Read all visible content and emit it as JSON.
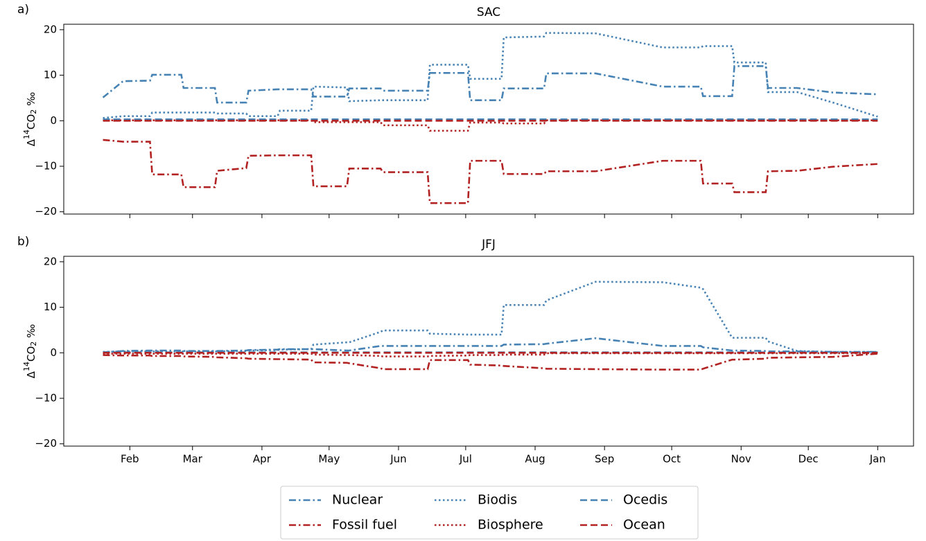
{
  "chart_data": [
    {
      "type": "line",
      "label": "a)",
      "title": "SAC",
      "ylabel": [
        "Δ",
        "14",
        "CO",
        "2",
        " ‰"
      ],
      "x": [
        19,
        28,
        40,
        41,
        54,
        55,
        69,
        70,
        83,
        84,
        97,
        98,
        112,
        113,
        128,
        129,
        143,
        144,
        164,
        165,
        182,
        183,
        197,
        198,
        216,
        217,
        239,
        269,
        286,
        287,
        300,
        301,
        315,
        316,
        329,
        345,
        365
      ],
      "xlim": [
        1.5,
        381
      ],
      "xticks": [
        31,
        59,
        90,
        120,
        151,
        181,
        212,
        243,
        273,
        304,
        334,
        365
      ],
      "show_xticklabels": false,
      "ylim": [
        -20.5,
        21.2
      ],
      "yticks": [
        {
          "value": -20,
          "label": "−20"
        },
        {
          "value": -10,
          "label": "−10"
        },
        0,
        10,
        20
      ],
      "series": [
        {
          "name": "Nuclear",
          "color": "#4682b4",
          "linestyle": "dashdot",
          "values": [
            5.1,
            8.7,
            8.8,
            10.1,
            10.1,
            7.2,
            7.2,
            4.0,
            4.0,
            6.6,
            6.9,
            6.9,
            6.9,
            5.3,
            5.3,
            7.1,
            7.1,
            6.6,
            6.6,
            10.5,
            10.5,
            4.5,
            4.5,
            7.1,
            7.1,
            10.4,
            10.4,
            7.5,
            7.5,
            5.4,
            5.4,
            12.0,
            12.0,
            7.2,
            7.2,
            6.2,
            5.8
          ]
        },
        {
          "name": "Fossil fuel",
          "color": "#b22222",
          "linestyle": "dashdot",
          "values": [
            -4.2,
            -4.6,
            -4.6,
            -11.8,
            -11.8,
            -14.6,
            -14.6,
            -11.0,
            -10.4,
            -7.7,
            -7.6,
            -7.6,
            -7.6,
            -14.4,
            -14.4,
            -10.5,
            -10.5,
            -11.3,
            -11.3,
            -18.1,
            -18.1,
            -8.8,
            -8.8,
            -11.7,
            -11.7,
            -11.1,
            -11.1,
            -8.8,
            -8.8,
            -13.8,
            -13.8,
            -15.7,
            -15.7,
            -11.1,
            -11.0,
            -10.1,
            -9.5
          ]
        },
        {
          "name": "Biodis",
          "color": "#4682b4",
          "linestyle": "dotted",
          "values": [
            0.6,
            1.0,
            1.0,
            1.8,
            1.8,
            1.8,
            1.8,
            1.6,
            1.6,
            1.0,
            1.0,
            2.2,
            2.2,
            7.5,
            7.3,
            4.3,
            4.5,
            4.5,
            4.5,
            12.3,
            12.3,
            9.2,
            9.2,
            18.3,
            18.5,
            19.3,
            19.2,
            16.1,
            16.1,
            16.4,
            16.4,
            12.8,
            12.8,
            6.3,
            6.3,
            4.0,
            0.9
          ]
        },
        {
          "name": "Biosphere",
          "color": "#b22222",
          "linestyle": "dotted",
          "values": [
            0.1,
            0.1,
            0.1,
            0.1,
            0.1,
            0.1,
            0.1,
            0.1,
            0.1,
            0.1,
            0.1,
            0.1,
            0.1,
            -0.3,
            -0.3,
            -0.3,
            -0.3,
            -1.0,
            -1.0,
            -2.2,
            -2.2,
            -0.4,
            -0.4,
            -0.6,
            -0.6,
            0.1,
            0.1,
            0.1,
            0.1,
            0.1,
            0.1,
            0.1,
            0.1,
            0.1,
            0.1,
            0.1,
            0.1
          ]
        },
        {
          "name": "Ocedis",
          "color": "#4682b4",
          "linestyle": "dashed",
          "values": [
            0.3,
            0.3,
            0.3,
            0.3,
            0.3,
            0.3,
            0.3,
            0.3,
            0.3,
            0.3,
            0.3,
            0.3,
            0.3,
            0.3,
            0.3,
            0.3,
            0.3,
            0.3,
            0.3,
            0.3,
            0.3,
            0.3,
            0.3,
            0.3,
            0.3,
            0.3,
            0.3,
            0.3,
            0.3,
            0.3,
            0.3,
            0.3,
            0.3,
            0.3,
            0.3,
            0.3,
            0.3
          ]
        },
        {
          "name": "Ocean",
          "color": "#b22222",
          "linestyle": "dashed",
          "values": [
            0,
            0,
            0,
            0,
            0,
            0,
            0,
            0,
            0,
            0,
            0,
            0,
            0,
            0,
            0,
            0,
            0,
            0,
            0,
            0,
            0,
            0,
            0,
            0,
            0,
            0,
            0,
            0,
            0,
            0,
            0,
            0,
            0,
            0,
            0,
            0,
            0
          ]
        }
      ]
    },
    {
      "type": "line",
      "label": "b)",
      "title": "JFJ",
      "ylabel": [
        "Δ",
        "14",
        "CO",
        "2",
        " ‰"
      ],
      "x": [
        19,
        28,
        40,
        41,
        54,
        55,
        69,
        70,
        83,
        84,
        97,
        98,
        112,
        113,
        128,
        129,
        143,
        144,
        164,
        165,
        182,
        183,
        197,
        198,
        216,
        217,
        239,
        269,
        286,
        287,
        300,
        301,
        315,
        316,
        329,
        345,
        365
      ],
      "xlim": [
        1.5,
        381
      ],
      "xticks": [
        {
          "value": 31,
          "label": "Feb"
        },
        {
          "value": 59,
          "label": "Mar"
        },
        {
          "value": 90,
          "label": "Apr"
        },
        {
          "value": 120,
          "label": "May"
        },
        {
          "value": 151,
          "label": "Jun"
        },
        {
          "value": 181,
          "label": "Jul"
        },
        {
          "value": 212,
          "label": "Aug"
        },
        {
          "value": 243,
          "label": "Sep"
        },
        {
          "value": 273,
          "label": "Oct"
        },
        {
          "value": 304,
          "label": "Nov"
        },
        {
          "value": 334,
          "label": "Dec"
        },
        {
          "value": 365,
          "label": "Jan"
        }
      ],
      "ylim": [
        -20.5,
        21.2
      ],
      "yticks": [
        {
          "value": -20,
          "label": "−20"
        },
        {
          "value": -10,
          "label": "−10"
        },
        0,
        10,
        20
      ],
      "legend": "lower center",
      "legend_columns": 3,
      "series": [
        {
          "name": "Nuclear",
          "color": "#4682b4",
          "linestyle": "dashdot",
          "values": [
            0.1,
            0.4,
            0.5,
            0.5,
            0.5,
            0.4,
            0.4,
            0.4,
            0.5,
            0.6,
            0.7,
            0.8,
            0.8,
            0.8,
            0.5,
            0.5,
            1.5,
            1.5,
            1.5,
            1.5,
            1.5,
            1.5,
            1.5,
            1.8,
            1.9,
            2.0,
            3.2,
            1.5,
            1.5,
            1.2,
            0.5,
            0.5,
            0.4,
            0.3,
            0.3,
            0.2,
            0.2
          ]
        },
        {
          "name": "Fossil fuel",
          "color": "#b22222",
          "linestyle": "dashdot",
          "values": [
            -0.5,
            -0.6,
            -0.6,
            -0.7,
            -0.7,
            -0.8,
            -0.9,
            -1.0,
            -1.2,
            -1.3,
            -1.4,
            -1.4,
            -1.5,
            -2.1,
            -2.2,
            -2.3,
            -3.4,
            -3.6,
            -3.6,
            -1.6,
            -1.6,
            -2.6,
            -2.8,
            -2.9,
            -3.4,
            -3.5,
            -3.6,
            -3.7,
            -3.7,
            -3.5,
            -1.5,
            -1.5,
            -1.3,
            -1.1,
            -1.0,
            -0.9,
            -0.2
          ]
        },
        {
          "name": "Biodis",
          "color": "#4682b4",
          "linestyle": "dotted",
          "values": [
            0.2,
            0.3,
            0.3,
            0.3,
            0.3,
            0.3,
            0.3,
            0.3,
            0.4,
            0.5,
            0.6,
            0.7,
            0.8,
            1.8,
            2.3,
            2.3,
            4.6,
            4.9,
            4.9,
            4.2,
            4.0,
            4.0,
            4.0,
            10.5,
            10.5,
            11.5,
            15.6,
            15.5,
            14.3,
            14.0,
            3.3,
            3.3,
            3.3,
            2.5,
            0.4,
            0.2,
            0.2
          ]
        },
        {
          "name": "Biosphere",
          "color": "#b22222",
          "linestyle": "dotted",
          "values": [
            -0.2,
            -0.2,
            -0.2,
            -0.2,
            -0.2,
            -0.2,
            -0.2,
            -0.2,
            -0.2,
            -0.2,
            -0.2,
            -0.2,
            -0.2,
            -0.4,
            -0.5,
            -0.5,
            -0.7,
            -0.8,
            -0.8,
            -0.7,
            -0.6,
            -0.5,
            -0.5,
            -0.4,
            -0.4,
            -0.1,
            -0.1,
            -0.1,
            -0.1,
            -0.1,
            -0.1,
            -0.1,
            -0.1,
            -0.1,
            -0.1,
            -0.1,
            -0.1
          ]
        },
        {
          "name": "Ocedis",
          "color": "#4682b4",
          "linestyle": "dashed",
          "values": [
            0.1,
            0.1,
            0.1,
            0.1,
            0.1,
            0.1,
            0.1,
            0.1,
            0.1,
            0.1,
            0.1,
            0.1,
            0.1,
            0.1,
            0.1,
            0.1,
            0.1,
            0.1,
            0.1,
            0.1,
            0.1,
            0.1,
            0.1,
            0.1,
            0.1,
            0.1,
            0.1,
            0.1,
            0.1,
            0.1,
            0.1,
            0.1,
            0.1,
            0.1,
            0.1,
            0.1,
            0.1
          ]
        },
        {
          "name": "Ocean",
          "color": "#b22222",
          "linestyle": "dashed",
          "values": [
            0,
            0,
            0,
            0,
            0,
            0,
            0,
            0,
            0,
            0,
            0,
            0,
            0,
            0,
            0,
            0,
            0,
            0,
            0,
            0,
            0,
            0,
            0,
            0,
            0,
            0,
            0,
            0,
            0,
            0,
            0,
            0,
            0,
            0,
            0,
            0,
            0
          ]
        }
      ]
    }
  ]
}
